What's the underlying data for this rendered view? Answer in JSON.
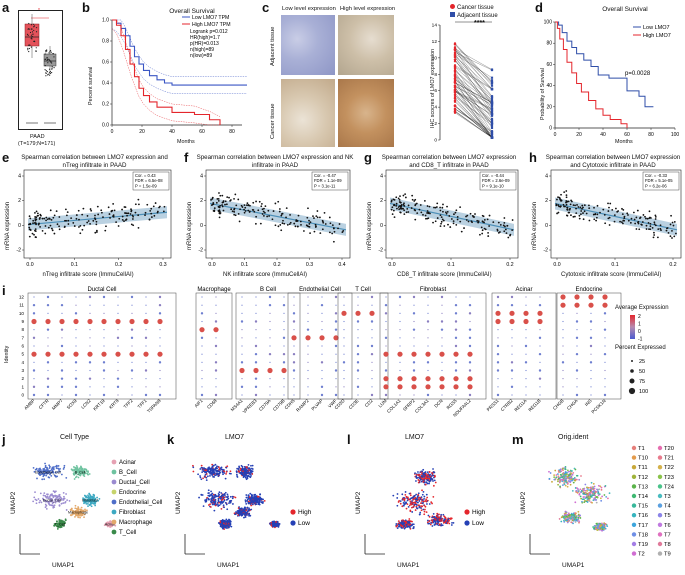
{
  "panels": {
    "a": {
      "letter": "a",
      "label": "PAAD",
      "counts": "(T=179;N=171)",
      "sig": "*"
    },
    "b": {
      "letter": "b",
      "title": "Overall Survival",
      "legend": [
        "Low LMO7 TPM",
        "High LMO7 TPM"
      ],
      "stats": [
        "Logrank  p=0.012",
        "HR(high)=1.7",
        "p(HR)=0.013",
        "n(high)=89",
        "n(low)=89"
      ],
      "ylabel": "Percent survival",
      "xlabel": "Months",
      "xticks": [
        "0",
        "20",
        "40",
        "60",
        "80"
      ],
      "yticks": [
        "0.0",
        "0.2",
        "0.4",
        "0.6",
        "0.8",
        "1.0"
      ]
    },
    "c": {
      "letter": "c",
      "col_titles": [
        "Low level expression",
        "High level expression"
      ],
      "row_titles": [
        "Adjacent tissue",
        "Cancer tissue"
      ],
      "legend": [
        "Cancer tissue",
        "Adjacent tissue"
      ],
      "sig": "****",
      "ylabel": "IHC scocres of LMO7 expression",
      "yticks": [
        "0",
        "2",
        "4",
        "6",
        "8",
        "10",
        "12",
        "14"
      ]
    },
    "d": {
      "letter": "d",
      "title": "Overall Survival",
      "legend": [
        "Low LMO7",
        "High LMO7"
      ],
      "pval": "p=0.0028",
      "ylabel": "Probability of Survival",
      "xlabel": "Months",
      "xticks": [
        "0",
        "20",
        "40",
        "60",
        "80",
        "100"
      ],
      "yticks": [
        "0",
        "20",
        "40",
        "60",
        "80",
        "100"
      ]
    },
    "e": {
      "letter": "e",
      "title": "Spearman correlation between LMO7 expression and nTreg infiltrate in PAAD",
      "ylabel": "mRNA expression",
      "xlabel": "nTreg infiltrate score (ImmuCellAI)",
      "stats": [
        "Cor. = 0.43",
        "FDR = 6.5e-08",
        "P = 1.5e-09"
      ],
      "xticks": [
        "0.0",
        "0.1",
        "0.2",
        "0.3"
      ],
      "yticks": [
        "-2",
        "0",
        "2",
        "4"
      ]
    },
    "f": {
      "letter": "f",
      "title": "Spearman correlation between LMO7 expression and NK infiltrate in PAAD",
      "ylabel": "mRNA expression",
      "xlabel": "NK infiltrate score (ImmuCellAI)",
      "stats": [
        "Cor. = -0.47",
        "FDR = 1.1e-09",
        "P = 3.1e-11"
      ],
      "xticks": [
        "0.0",
        "0.1",
        "0.2",
        "0.3",
        "0.4"
      ],
      "yticks": [
        "-2",
        "0",
        "2",
        "4"
      ]
    },
    "g": {
      "letter": "g",
      "title": "Spearman correlation between LMO7 expression and CD8_T infiltrate in PAAD",
      "ylabel": "mRNA expression",
      "xlabel": "CD8_T infiltrate score (ImmuCellAI)",
      "stats": [
        "Cor. = -0.44",
        "FDR = 2.6e-09",
        "P = 9.1e-10"
      ],
      "xticks": [
        "0.0",
        "0.1",
        "0.2"
      ],
      "yticks": [
        "-2",
        "0",
        "2",
        "4"
      ]
    },
    "h": {
      "letter": "h",
      "title": "Spearman correlation between LMO7 expression and Cytotoxic infiltrate in PAAD",
      "ylabel": "mRNA expression",
      "xlabel": "Cytotoxic infiltrate score (ImmuCellAI)",
      "stats": [
        "Cor. = -0.33",
        "FDR = 5.1e-05",
        "P = 6.2e-06"
      ],
      "xticks": [
        "0.0",
        "0.1",
        "0.2"
      ],
      "yticks": [
        "-2",
        "0",
        "2",
        "4"
      ]
    },
    "i": {
      "letter": "i",
      "ylabel": "Identity",
      "groups": [
        {
          "name": "Ductal Cell",
          "genes": [
            "AMBP",
            "CFTR",
            "MMP7",
            "SOX9",
            "LCN2",
            "KRT19",
            "KRT8",
            "TFF2",
            "TFF1",
            "TSPAN8"
          ]
        },
        {
          "name": "Macrophage",
          "genes": [
            "AIF1",
            "CD68"
          ]
        },
        {
          "name": "B Cell",
          "genes": [
            "MS4A1",
            "VPREB3",
            "CD79A",
            "CD79B"
          ]
        },
        {
          "name": "Endothelial Cell",
          "genes": [
            "CDH5",
            "RAMP2",
            "PLVAP",
            "VWF"
          ]
        },
        {
          "name": "T Cell",
          "genes": [
            "CD3D",
            "CD3E",
            "CD2"
          ]
        },
        {
          "name": "Fibroblast",
          "genes": [
            "LUM",
            "COL1A1",
            "SFRP2",
            "COL3A1",
            "DCN",
            "RGS5",
            "NDUFA4L2"
          ]
        },
        {
          "name": "Acinar",
          "genes": [
            "PRSS1",
            "CTRB2",
            "REG1A",
            "REG1B"
          ]
        },
        {
          "name": "Endocrine",
          "genes": [
            "CHGB",
            "CHGA",
            "INS",
            "PCSK1N"
          ]
        }
      ],
      "identities": [
        "0",
        "1",
        "2",
        "3",
        "4",
        "5",
        "6",
        "7",
        "8",
        "9",
        "10",
        "11",
        "12"
      ],
      "avg_title": "Average Expression",
      "avg_ticks": [
        "2",
        "1",
        "0",
        "-1"
      ],
      "pct_title": "Percent Expressed",
      "pct_values": [
        "25",
        "50",
        "75",
        "100"
      ]
    },
    "j": {
      "letter": "j",
      "title": "Cell Type",
      "xlabel": "UMAP1",
      "ylabel": "UMAP2",
      "legend": [
        "Acinar",
        "B_Cell",
        "Ductal_Cell",
        "Endocrine",
        "Endothelial_Cell",
        "Fibroblast",
        "Macrophage",
        "T_Cell"
      ],
      "cluster_labels": [
        "Endothelial_Cell",
        "B_Cell",
        "Ductal_Cell",
        "Fibroblast",
        "Macrophage",
        "Acinar",
        "T_Cell"
      ]
    },
    "k": {
      "letter": "k",
      "title": "LMO7",
      "xlabel": "UMAP1",
      "ylabel": "UMAP2",
      "legend": [
        "High",
        "Low"
      ]
    },
    "l": {
      "letter": "l",
      "title": "LMO7",
      "xlabel": "UMAP1",
      "ylabel": "UMAP2",
      "legend": [
        "High",
        "Low"
      ]
    },
    "m": {
      "letter": "m",
      "title": "Orig.ident",
      "xlabel": "UMAP1",
      "ylabel": "UMAP2",
      "legend_col1": [
        "T1",
        "T10",
        "T11",
        "T12",
        "T13",
        "T14",
        "T15",
        "T16",
        "T17",
        "T18",
        "T19",
        "T2"
      ],
      "legend_col2": [
        "T20",
        "T21",
        "T22",
        "T23",
        "T24",
        "T3",
        "T4",
        "T5",
        "T6",
        "T7",
        "T8",
        "T9"
      ]
    }
  },
  "colors": {
    "red": "#e4262c",
    "blue": "#2f4ea8",
    "cyan": "#5f9ec0",
    "gray": "#9a9a9a"
  }
}
